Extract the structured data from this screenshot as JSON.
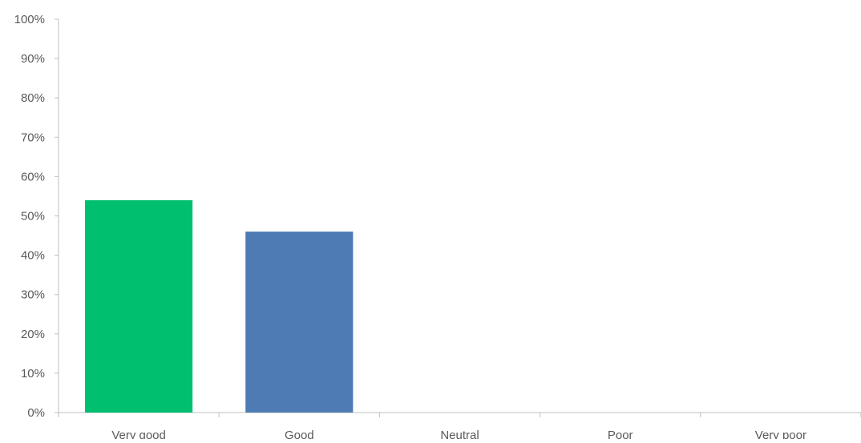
{
  "chart_data": {
    "type": "bar",
    "categories": [
      "Very good",
      "Good",
      "Neutral",
      "Poor",
      "Very poor"
    ],
    "values": [
      54,
      46,
      0,
      0,
      0
    ],
    "value_unit": "%",
    "colors": [
      "#00BF6F",
      "#4F7BB5",
      "#4F7BB5",
      "#4F7BB5",
      "#4F7BB5"
    ],
    "title": "",
    "xlabel": "",
    "ylabel": "",
    "ylim": [
      0,
      100
    ],
    "yticks": [
      0,
      10,
      20,
      30,
      40,
      50,
      60,
      70,
      80,
      90,
      100
    ],
    "ytick_labels": [
      "0%",
      "10%",
      "20%",
      "30%",
      "40%",
      "50%",
      "60%",
      "70%",
      "80%",
      "90%",
      "100%"
    ],
    "grid": false,
    "legend": "none",
    "axis_color": "#BFBFBF",
    "label_color": "#595959"
  }
}
